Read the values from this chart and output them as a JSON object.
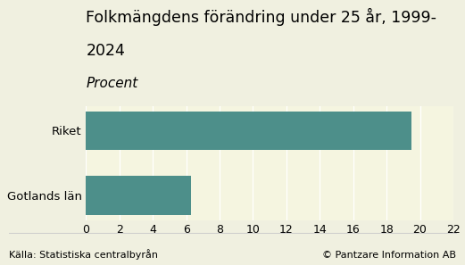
{
  "title_line1": "Folkmängdens förändring under 25 år, 1999-",
  "title_line2": "2024",
  "subtitle": "Procent",
  "categories": [
    "Gotlands län",
    "Riket"
  ],
  "values": [
    6.3,
    19.5
  ],
  "bar_color": "#4d8f8a",
  "background_color": "#f0f0e0",
  "plot_bg_color": "#f5f5e0",
  "xlim": [
    0,
    22
  ],
  "xticks": [
    0,
    2,
    4,
    6,
    8,
    10,
    12,
    14,
    16,
    18,
    20,
    22
  ],
  "footer_left": "Källa: Statistiska centralbyrån",
  "footer_right": "© Pantzare Information AB",
  "title_fontsize": 12.5,
  "subtitle_fontsize": 11,
  "label_fontsize": 9.5,
  "tick_fontsize": 9,
  "footer_fontsize": 8
}
